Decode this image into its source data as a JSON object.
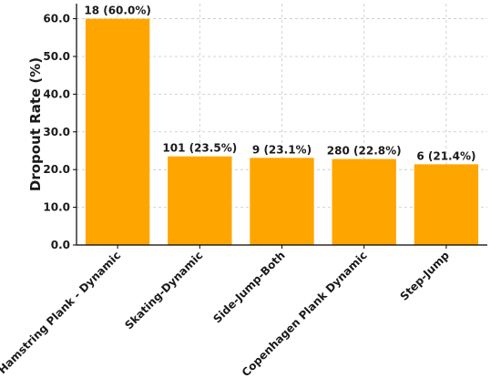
{
  "chart_data": {
    "type": "bar",
    "title": "",
    "xlabel": "",
    "ylabel": "Dropout Rate (%)",
    "ylim": [
      0,
      64
    ],
    "yticks": [
      0,
      10,
      20,
      30,
      40,
      50,
      60
    ],
    "ytick_labels": [
      "0.0",
      "10.0",
      "20.0",
      "30.0",
      "40.0",
      "50.0",
      "60.0"
    ],
    "categories": [
      "Hamstring Plank - Dynamic",
      "Skating-Dynamic",
      "Side-Jump-Both",
      "Copenhagen Plank Dynamic",
      "Step-Jump"
    ],
    "values": [
      60.0,
      23.5,
      23.1,
      22.8,
      21.4
    ],
    "data_labels": [
      "18 (60.0%)",
      "101 (23.5%)",
      "9 (23.1%)",
      "280 (22.8%)",
      "6 (21.4%)"
    ],
    "bar_color": "#FFA500",
    "grid": true,
    "legend": null
  }
}
